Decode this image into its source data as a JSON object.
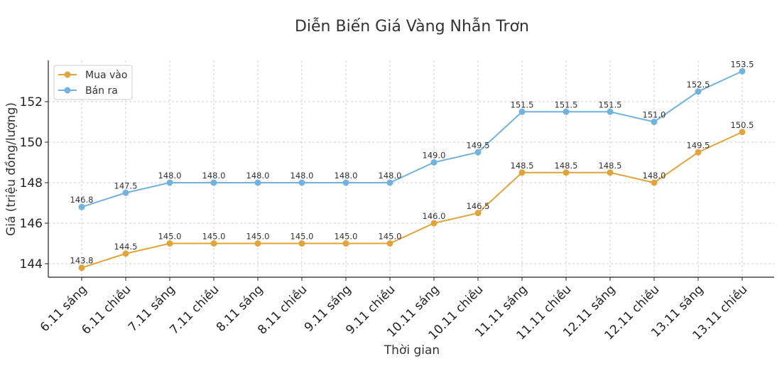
{
  "chart_data": {
    "type": "line",
    "title": "Diễn Biến Giá Vàng Nhẫn Trơn",
    "xlabel": "Thời gian",
    "ylabel": "Giá (triệu đồng/lượng)",
    "categories": [
      "6.11 sáng",
      "6.11 chiều",
      "7.11 sáng",
      "7.11 chiều",
      "8.11 sáng",
      "8.11 chiều",
      "9.11 sáng",
      "9.11 chiều",
      "10.11 sáng",
      "10.11 chiều",
      "11.11 sáng",
      "11.11 chiều",
      "12.11 sáng",
      "12.11 chiều",
      "13.11 sáng",
      "13.11 chiều"
    ],
    "series": [
      {
        "name": "Mua vào",
        "color": "#E0A43C",
        "values": [
          143.8,
          144.5,
          145.0,
          145.0,
          145.0,
          145.0,
          145.0,
          145.0,
          146.0,
          146.5,
          148.5,
          148.5,
          148.5,
          148.0,
          149.5,
          150.5
        ]
      },
      {
        "name": "Bán ra",
        "color": "#72B2DC",
        "values": [
          146.8,
          147.5,
          148.0,
          148.0,
          148.0,
          148.0,
          148.0,
          148.0,
          149.0,
          149.5,
          151.5,
          151.5,
          151.5,
          151.0,
          152.5,
          153.5
        ]
      }
    ],
    "yticks": [
      144,
      146,
      148,
      150,
      152
    ],
    "ylim": [
      143.3,
      154.0
    ],
    "grid": true,
    "legend_position": "upper left"
  }
}
